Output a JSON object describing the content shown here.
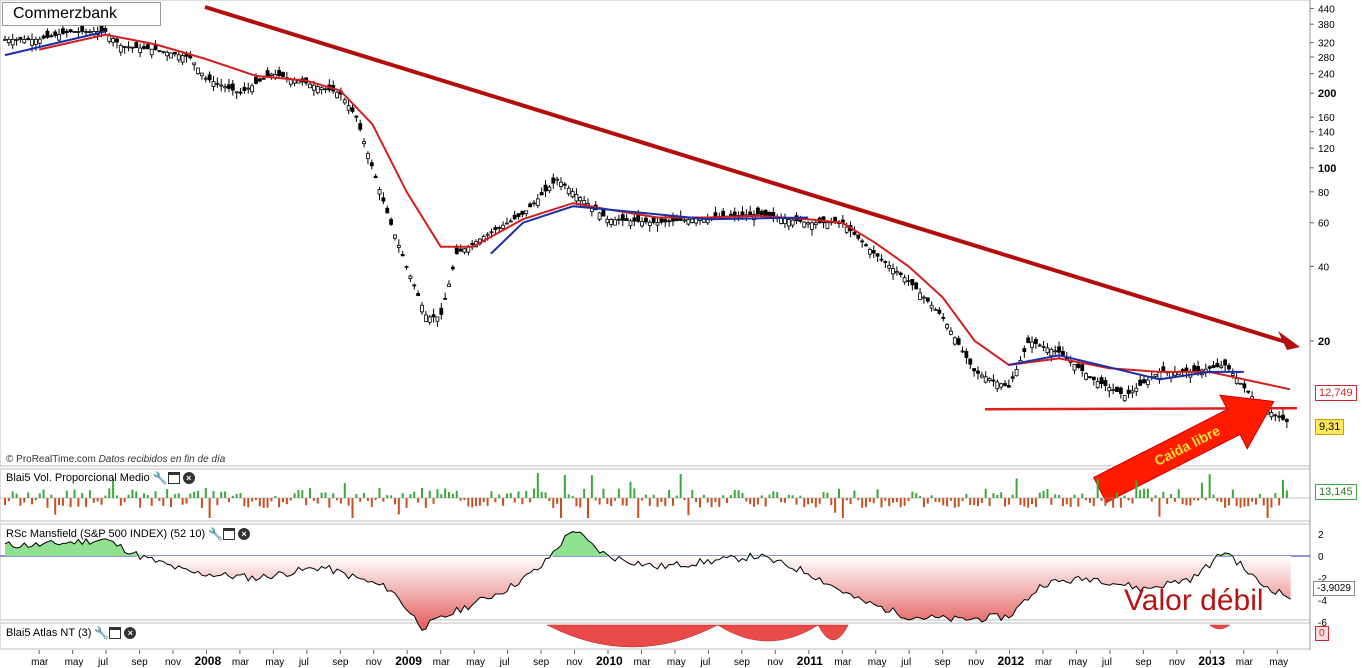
{
  "title": "Commerzbank",
  "credit": {
    "brand": "© ProRealTime.com",
    "note": "Datos recibidos en fin de día"
  },
  "indicators": [
    {
      "label": "Blai5 Vol. Proporcional Medio"
    },
    {
      "label": "RSc Mansfield (S&P 500 INDEX) (52 10)"
    },
    {
      "label": "Blai5 Atlas NT (3)"
    }
  ],
  "annotations": {
    "free_fall": "Caida libre",
    "weak_value": "Valor débil"
  },
  "colors": {
    "ma_red": "#d41e1e",
    "ma_blue": "#1a2ea8",
    "trend_arrow": "#b40d0d",
    "vol_up": "#3aa83a",
    "vol_down": "#c8501e",
    "rs_pos": "#8fe08f",
    "rs_neg": "#e35a5a",
    "arrow_fill": "#ff1a00"
  },
  "chart_data": {
    "type": "candlestick",
    "scale": "log",
    "y_ticks": [
      440,
      380,
      320,
      280,
      240,
      200,
      160,
      140,
      120,
      100,
      80,
      60,
      40,
      20
    ],
    "x_labels": [
      "mar",
      "may",
      "jul",
      "sep",
      "nov",
      "2008",
      "mar",
      "may",
      "jul",
      "sep",
      "nov",
      "2009",
      "mar",
      "may",
      "jul",
      "sep",
      "nov",
      "2010",
      "mar",
      "may",
      "jul",
      "sep",
      "nov",
      "2011",
      "mar",
      "may",
      "jul",
      "sep",
      "nov",
      "2012",
      "mar",
      "may",
      "jul",
      "sep",
      "nov",
      "2013",
      "mar",
      "may"
    ],
    "price_series": [
      [
        2007.17,
        330
      ],
      [
        2007.33,
        355
      ],
      [
        2007.5,
        355
      ],
      [
        2007.58,
        310
      ],
      [
        2007.75,
        300
      ],
      [
        2007.83,
        290
      ],
      [
        2007.92,
        280
      ],
      [
        2008.0,
        230
      ],
      [
        2008.17,
        200
      ],
      [
        2008.33,
        240
      ],
      [
        2008.5,
        220
      ],
      [
        2008.67,
        200
      ],
      [
        2008.75,
        160
      ],
      [
        2008.83,
        100
      ],
      [
        2008.92,
        60
      ],
      [
        2009.0,
        40
      ],
      [
        2009.1,
        25
      ],
      [
        2009.17,
        25
      ],
      [
        2009.25,
        45
      ],
      [
        2009.42,
        55
      ],
      [
        2009.58,
        65
      ],
      [
        2009.75,
        90
      ],
      [
        2009.92,
        70
      ],
      [
        2010.0,
        62
      ],
      [
        2010.25,
        60
      ],
      [
        2010.5,
        63
      ],
      [
        2010.75,
        65
      ],
      [
        2011.0,
        60
      ],
      [
        2011.17,
        60
      ],
      [
        2011.33,
        45
      ],
      [
        2011.5,
        35
      ],
      [
        2011.67,
        25
      ],
      [
        2011.83,
        15
      ],
      [
        2012.0,
        13
      ],
      [
        2012.1,
        20
      ],
      [
        2012.25,
        18
      ],
      [
        2012.42,
        14
      ],
      [
        2012.58,
        12
      ],
      [
        2012.75,
        15
      ],
      [
        2012.92,
        15
      ],
      [
        2013.08,
        16
      ],
      [
        2013.17,
        13
      ],
      [
        2013.25,
        11
      ],
      [
        2013.33,
        10
      ],
      [
        2013.4,
        9.31
      ]
    ],
    "ma_series_red": [
      [
        2007.17,
        300
      ],
      [
        2007.5,
        345
      ],
      [
        2007.75,
        315
      ],
      [
        2008.0,
        275
      ],
      [
        2008.25,
        235
      ],
      [
        2008.5,
        225
      ],
      [
        2008.67,
        205
      ],
      [
        2008.83,
        150
      ],
      [
        2009.0,
        80
      ],
      [
        2009.17,
        48
      ],
      [
        2009.33,
        48
      ],
      [
        2009.58,
        62
      ],
      [
        2009.83,
        72
      ],
      [
        2010.0,
        68
      ],
      [
        2010.25,
        63
      ],
      [
        2010.5,
        63
      ],
      [
        2010.75,
        64
      ],
      [
        2011.0,
        62
      ],
      [
        2011.17,
        60
      ],
      [
        2011.33,
        50
      ],
      [
        2011.5,
        40
      ],
      [
        2011.67,
        30
      ],
      [
        2011.83,
        20
      ],
      [
        2012.0,
        16
      ],
      [
        2012.25,
        17
      ],
      [
        2012.5,
        15.5
      ],
      [
        2012.75,
        15
      ],
      [
        2013.0,
        15
      ],
      [
        2013.17,
        14
      ],
      [
        2013.4,
        12.749
      ]
    ],
    "ma_series_blue": [
      [
        2007.0,
        285
      ],
      [
        2007.5,
        355
      ],
      [
        2009.42,
        45
      ],
      [
        2009.58,
        60
      ],
      [
        2009.83,
        70
      ],
      [
        2010.5,
        62
      ],
      [
        2011.0,
        63
      ],
      [
        2012.0,
        16
      ],
      [
        2012.25,
        17.5
      ],
      [
        2012.75,
        14
      ],
      [
        2013.0,
        15
      ],
      [
        2013.17,
        15
      ]
    ],
    "last_price": "9,31",
    "ma_value": "12,749",
    "trend_arrow": {
      "from": [
        2007.83,
        440
      ],
      "to": [
        2013.42,
        19
      ]
    },
    "support_level": 10.6,
    "volume": {
      "last": "13,145"
    },
    "rs": {
      "y_ticks": [
        "2",
        "0",
        "-2",
        "-4",
        "-6"
      ],
      "last": "-3,9029",
      "series": [
        [
          2007.17,
          1
        ],
        [
          2007.5,
          1.5
        ],
        [
          2007.67,
          0
        ],
        [
          2007.92,
          -1.5
        ],
        [
          2008.25,
          -2
        ],
        [
          2008.58,
          -1
        ],
        [
          2008.92,
          -3
        ],
        [
          2009.08,
          -6.5
        ],
        [
          2009.25,
          -5
        ],
        [
          2009.5,
          -3
        ],
        [
          2009.67,
          -1
        ],
        [
          2009.83,
          2.5
        ],
        [
          2009.92,
          1
        ],
        [
          2010.0,
          0
        ],
        [
          2010.25,
          -1
        ],
        [
          2010.5,
          -0.5
        ],
        [
          2010.75,
          0
        ],
        [
          2011.0,
          -1.5
        ],
        [
          2011.25,
          -4
        ],
        [
          2011.5,
          -5.5
        ],
        [
          2011.75,
          -5.8
        ],
        [
          2012.0,
          -5.5
        ],
        [
          2012.17,
          -2.5
        ],
        [
          2012.42,
          -2
        ],
        [
          2012.67,
          -3
        ],
        [
          2012.92,
          -2
        ],
        [
          2013.08,
          0.5
        ],
        [
          2013.25,
          -2.5
        ],
        [
          2013.42,
          -3.9
        ]
      ]
    },
    "atlas": {
      "y_ticks": [
        "0"
      ],
      "last": "0"
    }
  }
}
